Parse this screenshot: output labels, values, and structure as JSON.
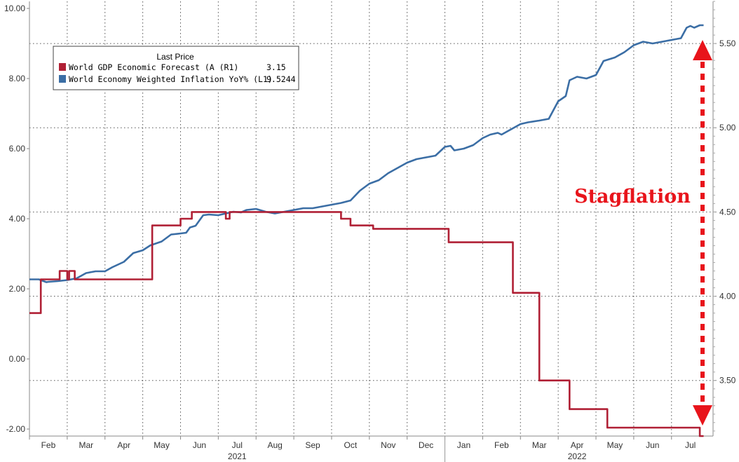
{
  "chart_data": {
    "type": "line",
    "title": "",
    "xlabel": "",
    "ylabel_left": "",
    "ylabel_right": "",
    "left_axis": {
      "range": [
        -2.2,
        10.2
      ],
      "ticks": [
        "-2.00",
        "0.00",
        "2.00",
        "4.00",
        "6.00",
        "8.00",
        "10.00"
      ]
    },
    "right_axis": {
      "range": [
        3.17,
        5.75
      ],
      "ticks": [
        "3.50",
        "4.00",
        "4.50",
        "5.00",
        "5.50"
      ]
    },
    "x_months": [
      "Feb",
      "Mar",
      "Apr",
      "May",
      "Jun",
      "Jul",
      "Aug",
      "Sep",
      "Oct",
      "Nov",
      "Dec",
      "Jan",
      "Feb",
      "Mar",
      "Apr",
      "May",
      "Jun",
      "Jul"
    ],
    "x_years": [
      "2021",
      "2022"
    ],
    "x_range_months": [
      0,
      18.1
    ],
    "grid": true,
    "legend": {
      "title": "Last Price",
      "position": "top-left",
      "entries": [
        {
          "label": "World GDP Economic Forecast (A  (R1)",
          "value": "3.15",
          "color": "#b02035"
        },
        {
          "label": "World Economy Weighted Inflation YoY%  (L1)",
          "value": "9.5244",
          "color": "#3b6ea5"
        }
      ]
    },
    "annotation": {
      "text": "Stagflation",
      "color": "#e8141b"
    },
    "series": [
      {
        "name": "World Economy Weighted Inflation YoY%",
        "axis": "left",
        "color": "#3b6ea5",
        "x": [
          0,
          0.25,
          0.45,
          0.5,
          0.75,
          1,
          1.25,
          1.5,
          1.75,
          2,
          2.2,
          2.5,
          2.75,
          3,
          3.2,
          3.5,
          3.75,
          4,
          4.15,
          4.25,
          4.4,
          4.6,
          4.75,
          5,
          5.2,
          5.4,
          5.6,
          5.75,
          6,
          6.25,
          6.5,
          6.75,
          7,
          7.25,
          7.5,
          7.75,
          8,
          8.25,
          8.5,
          8.75,
          9,
          9.25,
          9.5,
          9.75,
          10,
          10.25,
          10.5,
          10.75,
          11,
          11.15,
          11.25,
          11.5,
          11.75,
          12,
          12.2,
          12.4,
          12.5,
          12.75,
          13,
          13.2,
          13.5,
          13.75,
          14,
          14.2,
          14.3,
          14.5,
          14.75,
          15,
          15.2,
          15.5,
          15.75,
          16,
          16.25,
          16.5,
          16.75,
          17,
          17.25,
          17.4,
          17.5,
          17.6,
          17.75,
          17.85
        ],
        "y": [
          2.27,
          2.27,
          2.19,
          2.2,
          2.22,
          2.25,
          2.3,
          2.45,
          2.5,
          2.5,
          2.62,
          2.77,
          3.02,
          3.1,
          3.24,
          3.35,
          3.55,
          3.58,
          3.6,
          3.75,
          3.8,
          4.1,
          4.12,
          4.1,
          4.15,
          4.2,
          4.18,
          4.25,
          4.28,
          4.2,
          4.15,
          4.2,
          4.25,
          4.3,
          4.3,
          4.35,
          4.4,
          4.45,
          4.52,
          4.8,
          5.0,
          5.1,
          5.3,
          5.45,
          5.6,
          5.7,
          5.75,
          5.8,
          6.05,
          6.08,
          5.95,
          6.0,
          6.1,
          6.3,
          6.4,
          6.45,
          6.4,
          6.55,
          6.7,
          6.75,
          6.8,
          6.85,
          7.35,
          7.5,
          7.95,
          8.05,
          8.0,
          8.1,
          8.5,
          8.6,
          8.75,
          8.95,
          9.05,
          9.0,
          9.05,
          9.1,
          9.15,
          9.45,
          9.5,
          9.45,
          9.52,
          9.52
        ]
      },
      {
        "name": "World GDP Economic Forecast (A",
        "axis": "right",
        "color": "#b02035",
        "x": [
          0,
          0.3,
          0.3,
          0.8,
          0.8,
          1,
          1,
          1.05,
          1.05,
          1.2,
          1.2,
          3.25,
          3.25,
          4,
          4,
          4.3,
          4.3,
          5.2,
          5.2,
          5.3,
          5.3,
          8.25,
          8.25,
          8.5,
          8.5,
          9.1,
          9.1,
          11.1,
          11.1,
          12.8,
          12.8,
          13.5,
          13.5,
          14.3,
          14.3,
          15.3,
          15.3,
          16.2,
          16.2,
          17.75,
          17.75,
          17.85
        ],
        "y": [
          3.9,
          3.9,
          4.1,
          4.1,
          4.15,
          4.15,
          4.1,
          4.1,
          4.15,
          4.15,
          4.1,
          4.1,
          4.42,
          4.42,
          4.46,
          4.46,
          4.5,
          4.5,
          4.46,
          4.46,
          4.5,
          4.5,
          4.46,
          4.46,
          4.42,
          4.42,
          4.4,
          4.4,
          4.32,
          4.32,
          4.02,
          4.02,
          3.5,
          3.5,
          3.33,
          3.33,
          3.22,
          3.22,
          3.22,
          3.22,
          3.17,
          3.17
        ]
      }
    ]
  }
}
